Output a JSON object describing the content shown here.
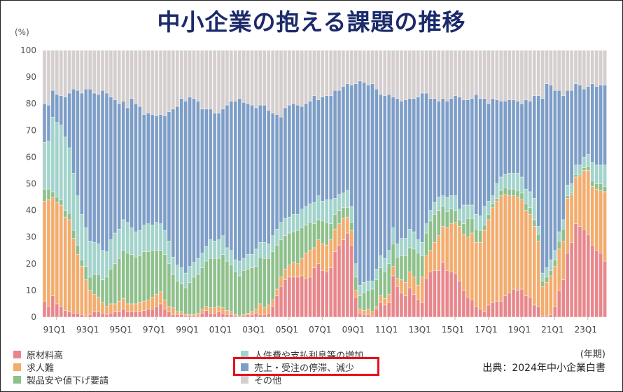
{
  "title": "中小企業の抱える課題の推移",
  "source": "出典：2024年中小企業白書",
  "highlighted_legend": "売上・受注の停滞、減少",
  "chart_data": {
    "type": "bar",
    "stacked": true,
    "title": "中小企業の抱える課題の推移",
    "ylabel": "(%)",
    "xlabel": "(年期)",
    "ylim": [
      0,
      100
    ],
    "yticks": [
      "0",
      "10",
      "20",
      "30",
      "40",
      "50",
      "60",
      "70",
      "80",
      "90",
      "100"
    ],
    "first_period": "1990Q2",
    "last_period": "2024Q1",
    "xtick_labels": [
      "91Q1",
      "93Q1",
      "95Q1",
      "97Q1",
      "99Q1",
      "01Q1",
      "03Q1",
      "05Q1",
      "07Q1",
      "09Q1",
      "11Q1",
      "13Q1",
      "15Q1",
      "17Q1",
      "19Q1",
      "21Q1",
      "23Q1"
    ],
    "xtick_first_index": 3,
    "xtick_step": 8,
    "legend_placement": "bottom",
    "series": [
      {
        "name": "原材料高",
        "color": "#e9868b",
        "values": [
          6,
          4,
          8,
          5,
          4,
          2.5,
          2,
          1.5,
          1.5,
          1,
          0.5,
          1,
          2,
          2,
          1.5,
          1,
          1.5,
          2,
          2,
          3,
          2,
          2,
          2,
          2,
          2.5,
          3,
          3,
          4,
          5,
          3,
          2,
          1,
          1,
          1,
          0.5,
          0.5,
          0.5,
          0.5,
          1.5,
          2.5,
          1.5,
          1.5,
          2,
          1.5,
          1,
          1,
          0.5,
          0,
          0.5,
          1,
          1,
          1.5,
          1,
          1,
          1.5,
          4,
          8,
          11.5,
          14,
          15,
          15,
          15,
          15.5,
          14.5,
          15,
          18.5,
          20,
          17.5,
          17,
          18.5,
          24.5,
          27,
          29,
          31.5,
          27,
          7.5,
          1.5,
          1,
          1,
          0.5,
          3,
          5.5,
          4.5,
          5.5,
          15.5,
          11.5,
          9,
          8,
          11,
          8.5,
          6.5,
          5.5,
          14.5,
          17,
          17.5,
          17.5,
          20.5,
          17.5,
          17,
          16.5,
          13.5,
          10,
          7.5,
          6.5,
          4,
          3,
          2,
          4.5,
          5.5,
          6,
          6,
          8,
          9,
          10.5,
          10,
          10.5,
          8,
          7.5,
          4.5,
          4,
          0.5,
          0.5,
          1,
          4,
          10,
          14,
          24,
          28,
          35,
          34,
          33,
          31,
          27,
          25,
          24,
          21
        ]
      },
      {
        "name": "求人難",
        "color": "#f4ac6b",
        "values": [
          37.5,
          40,
          37,
          38,
          38,
          35,
          34.5,
          28,
          22,
          18,
          13.5,
          9,
          6.5,
          5.5,
          4,
          3,
          3.5,
          3,
          4,
          4,
          3,
          3,
          3,
          3.5,
          3.5,
          3.5,
          4.5,
          4.5,
          4.5,
          3.5,
          2,
          2.5,
          1,
          1,
          0.5,
          0.5,
          0.5,
          1,
          1.5,
          1.5,
          2,
          2,
          2,
          2,
          1.5,
          1,
          0.5,
          0.5,
          0.5,
          0.5,
          1,
          1.5,
          4,
          2.5,
          3,
          2.5,
          2.5,
          3.5,
          4,
          4.5,
          5.5,
          5,
          6.5,
          9.5,
          10,
          7.5,
          9,
          10,
          10,
          10.5,
          8.5,
          8,
          8,
          6,
          5.5,
          2.5,
          1.5,
          1.5,
          2,
          1.5,
          1,
          2.5,
          2.5,
          3,
          3.5,
          3,
          5,
          5,
          6,
          6.5,
          5.5,
          9.5,
          8.5,
          8,
          10.5,
          13,
          13.5,
          16,
          18,
          19,
          20.5,
          21,
          22.5,
          25,
          24,
          25,
          30.5,
          32,
          35.5,
          37.5,
          39.5,
          38,
          36.5,
          35,
          35,
          33.5,
          32,
          31,
          29.5,
          24.5,
          11,
          12.5,
          14.5,
          15,
          15.5,
          14.5,
          20.5,
          18,
          17.5,
          19,
          22,
          24,
          22,
          23,
          23.5,
          26
        ]
      },
      {
        "name": "製品安や値下げ要請",
        "color": "#8dc18b",
        "values": [
          4.5,
          4,
          2,
          2,
          2,
          2.5,
          2.5,
          3,
          3.5,
          2.5,
          5,
          5,
          7.5,
          8.5,
          8.5,
          11,
          13,
          15,
          16,
          18,
          19,
          18.5,
          17.5,
          17.5,
          18.5,
          18,
          17.5,
          16.5,
          15.5,
          17,
          16,
          12.5,
          11.5,
          10.5,
          10,
          12,
          14,
          14.5,
          15.5,
          17,
          18.5,
          18.5,
          18,
          20,
          18.5,
          17.5,
          16,
          15,
          16.5,
          16.5,
          16.5,
          16,
          17.5,
          18.5,
          17.5,
          18,
          16.5,
          14,
          12.5,
          12,
          11.5,
          12.5,
          11.5,
          10.5,
          10.5,
          9,
          7.5,
          8.5,
          8.5,
          6,
          5.5,
          5,
          4,
          3.5,
          3,
          5,
          5,
          6.5,
          7,
          8.5,
          10,
          10.5,
          10,
          11.5,
          8.5,
          8,
          9,
          10,
          9,
          10.5,
          12,
          8,
          8.5,
          11,
          10.5,
          9.5,
          7.5,
          6,
          5.5,
          4.5,
          2.5,
          4,
          7,
          5.5,
          5,
          4.5,
          2,
          2,
          1.5,
          1,
          2,
          2.5,
          2.5,
          2.5,
          2.5,
          2.5,
          2.5,
          2.5,
          2.5,
          2.5,
          2,
          2,
          2,
          2.5,
          3,
          4.5,
          1,
          0.5,
          1,
          0.5,
          1,
          1.5,
          2,
          2,
          2.5,
          2
        ]
      },
      {
        "name": "人件費や支払利息等の増加",
        "color": "#a0d4cc",
        "values": [
          17.5,
          18,
          28,
          28,
          28,
          27.5,
          24.5,
          21.5,
          18.5,
          17,
          14.5,
          13.5,
          12,
          11.5,
          11,
          9.5,
          11,
          11.5,
          11,
          11.5,
          11.5,
          10,
          9.5,
          9.5,
          10,
          10.5,
          9.5,
          10.5,
          10,
          9,
          8.5,
          6.5,
          6,
          6,
          5.5,
          6,
          5.5,
          6,
          5.5,
          5.5,
          7,
          6.5,
          7,
          7,
          5,
          5.5,
          4.5,
          5.5,
          4.5,
          5.5,
          5,
          6.5,
          5.5,
          6,
          5.5,
          6,
          6,
          6.5,
          6.5,
          6,
          6.5,
          6,
          7,
          7,
          7,
          8,
          9,
          7.5,
          8.5,
          9,
          6,
          6,
          5.5,
          6.5,
          6,
          5,
          4,
          4,
          3.5,
          3,
          4,
          4.5,
          5,
          5,
          6,
          5,
          6.5,
          6.5,
          7,
          6.5,
          5,
          5,
          3.5,
          4,
          4.5,
          5,
          4,
          5.5,
          5,
          5.5,
          4,
          7,
          5,
          5,
          5.5,
          5.5,
          7,
          5,
          3,
          5.5,
          5,
          5,
          6,
          6,
          6.5,
          6,
          5.5,
          6,
          8,
          3,
          3,
          3.5,
          4,
          3.5,
          3.5,
          3.5,
          4,
          3.5,
          3.5,
          3.5,
          4,
          4.5,
          7,
          7,
          7,
          8
        ]
      },
      {
        "name": "売上・受注の停滞、減少",
        "color": "#7c9ec8",
        "values": [
          14.5,
          13.5,
          10,
          10.5,
          11,
          15,
          20.5,
          31.5,
          39.5,
          45.5,
          52,
          57,
          56,
          56,
          60,
          59.5,
          53.5,
          50,
          47,
          44.5,
          43,
          48.5,
          48,
          46.5,
          41.5,
          41.5,
          41.5,
          40,
          41,
          43,
          48.5,
          55.5,
          59.5,
          63.5,
          64.5,
          63.5,
          61.5,
          59,
          54,
          51.5,
          49,
          48,
          47.5,
          47.5,
          53.5,
          56,
          59.5,
          61,
          58.5,
          56.5,
          56,
          53,
          51.5,
          51.5,
          50,
          46,
          43,
          39.5,
          41.5,
          42,
          41.5,
          41,
          38.5,
          38.5,
          38.5,
          40,
          36,
          39,
          39,
          39,
          40.5,
          39,
          40,
          40,
          45.5,
          67.5,
          76.5,
          75,
          73.5,
          74,
          67.5,
          60.5,
          61,
          58.5,
          49,
          54.5,
          51.5,
          52,
          49,
          50,
          53.5,
          56,
          49,
          42,
          39,
          36,
          36.5,
          36,
          36.5,
          37.5,
          42,
          39.5,
          39.5,
          40,
          45,
          44,
          40.5,
          36.5,
          36.5,
          31.5,
          28.5,
          27.5,
          27.5,
          27.5,
          27,
          27.5,
          33.5,
          34,
          38.5,
          49,
          65.5,
          69,
          65.5,
          60,
          53,
          46.5,
          35.5,
          35,
          30.5,
          30,
          25.5,
          25.5,
          29.5,
          29.5,
          30,
          30
        ]
      },
      {
        "name": "その他",
        "color": "#d4cece",
        "values": [
          20,
          20.5,
          15,
          16.5,
          17,
          17.5,
          16,
          14.5,
          15,
          16,
          14.5,
          14.5,
          16,
          16.5,
          15,
          16,
          17.5,
          18.5,
          20,
          19,
          21.5,
          18,
          20,
          21,
          24,
          23.5,
          24,
          24.5,
          24,
          24.5,
          23,
          22,
          21,
          18,
          19,
          17.5,
          18,
          19,
          22,
          22,
          22,
          23.5,
          23.5,
          22,
          20.5,
          19,
          19,
          18,
          19.5,
          20,
          20.5,
          21.5,
          20.5,
          20.5,
          22.5,
          23.5,
          24,
          25,
          21.5,
          20.5,
          20,
          20.5,
          21,
          20,
          19,
          17,
          18.5,
          17.5,
          17,
          17,
          15,
          15,
          13.5,
          12.5,
          13,
          12.5,
          11.5,
          12,
          13,
          12.5,
          14.5,
          16.5,
          17,
          16.5,
          17.5,
          18,
          19,
          18.5,
          18,
          18,
          17.5,
          16,
          16,
          18,
          18,
          19,
          18,
          19,
          18,
          17,
          17.5,
          18.5,
          18.5,
          18,
          16.5,
          18,
          18,
          20,
          18,
          18.5,
          19,
          19,
          18.5,
          18.5,
          19,
          20,
          18.5,
          19,
          17,
          17,
          18,
          12.5,
          13,
          15,
          15,
          17,
          15,
          15,
          12.5,
          13,
          14.5,
          13.5,
          12.5,
          13.5,
          13,
          13
        ]
      }
    ]
  }
}
